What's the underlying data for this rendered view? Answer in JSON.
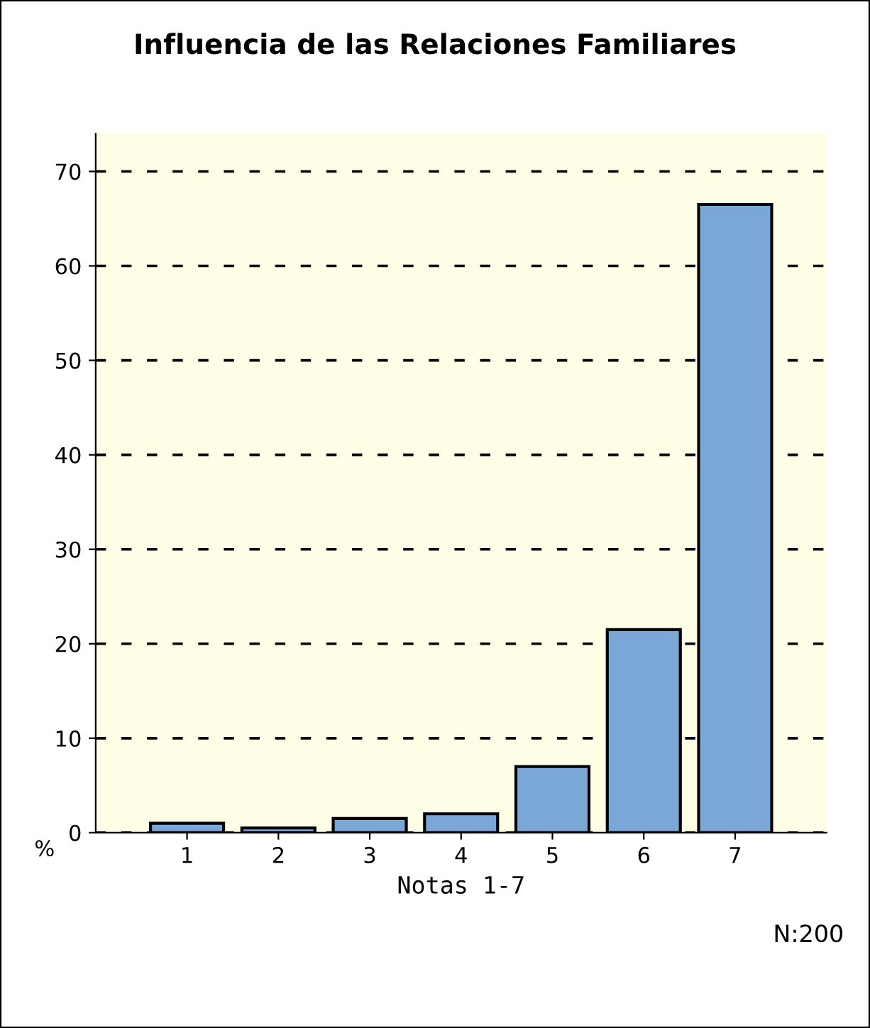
{
  "chart_data": {
    "type": "bar",
    "title": "Influencia de las Relaciones Familiares",
    "xlabel": "Notas 1-7",
    "ylabel": "%",
    "categories": [
      "1",
      "2",
      "3",
      "4",
      "5",
      "6",
      "7"
    ],
    "values": [
      1.0,
      0.5,
      1.5,
      2.0,
      7.0,
      21.5,
      66.5
    ],
    "color": "#7ba7d7",
    "ylim": [
      0,
      74
    ],
    "yticks": [
      0,
      10,
      20,
      30,
      40,
      50,
      60,
      70
    ],
    "grid": "y",
    "annotations": [
      "N:200"
    ]
  }
}
